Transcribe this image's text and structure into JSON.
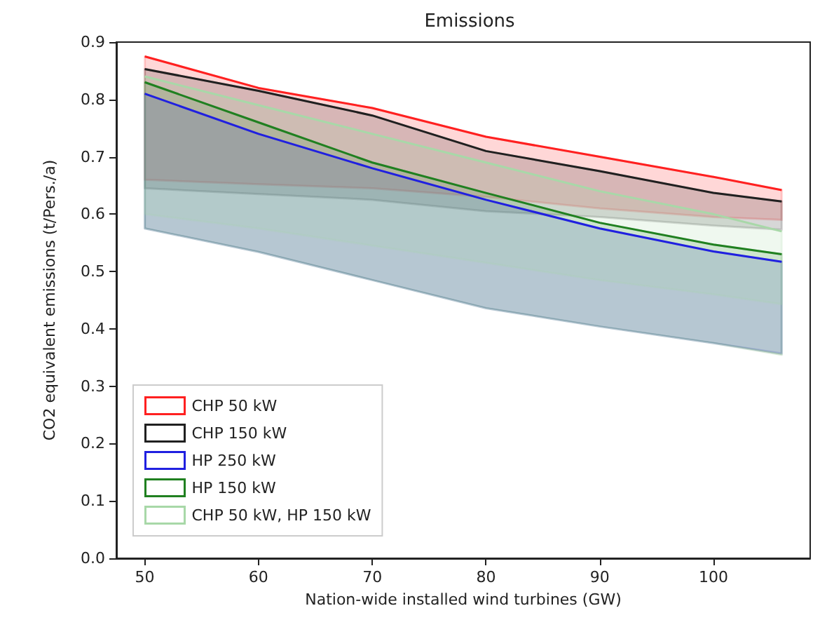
{
  "chart_data": {
    "type": "line",
    "title": "Emissions",
    "xlabel": "Nation-wide installed wind turbines (GW)",
    "ylabel": "CO2 equivalent emissions (t/Pers./a)",
    "x": [
      50,
      60,
      70,
      80,
      90,
      100,
      106
    ],
    "xlim": [
      47.5,
      108.5
    ],
    "xticks": [
      50,
      60,
      70,
      80,
      90,
      100
    ],
    "ylim": [
      0,
      0.9
    ],
    "yticks": [
      {
        "value": 0,
        "label": "0.0"
      },
      {
        "value": 0.1,
        "label": "0.1"
      },
      {
        "value": 0.2,
        "label": "0.2"
      },
      {
        "value": 0.3,
        "label": "0.3"
      },
      {
        "value": 0.4,
        "label": "0.4"
      },
      {
        "value": 0.5,
        "label": "0.5"
      },
      {
        "value": 0.6,
        "label": "0.6"
      },
      {
        "value": 0.7,
        "label": "0.7"
      },
      {
        "value": 0.8,
        "label": "0.8"
      },
      {
        "value": 0.9,
        "label": "0.9"
      }
    ],
    "grid": false,
    "legend": "bottom left",
    "marker": "none",
    "series": [
      {
        "name": "CHP 50 kW",
        "color": "#ff2020",
        "values": [
          0.875,
          0.82,
          0.785,
          0.735,
          0.7,
          0.665,
          0.642
        ],
        "upper": [
          0.875,
          0.82,
          0.785,
          0.735,
          0.7,
          0.665,
          0.642
        ],
        "lower": [
          0.66,
          0.652,
          0.645,
          0.63,
          0.61,
          0.595,
          0.59
        ]
      },
      {
        "name": "CHP 150 kW",
        "color": "#202020",
        "values": [
          0.853,
          0.815,
          0.772,
          0.71,
          0.675,
          0.637,
          0.622
        ],
        "upper": [
          0.853,
          0.815,
          0.772,
          0.71,
          0.675,
          0.637,
          0.622
        ],
        "lower": [
          0.645,
          0.635,
          0.625,
          0.605,
          0.595,
          0.58,
          0.573
        ]
      },
      {
        "name": "HP 250 kW",
        "color": "#2020e0",
        "values": [
          0.81,
          0.74,
          0.68,
          0.625,
          0.575,
          0.535,
          0.517
        ],
        "upper": [
          0.81,
          0.74,
          0.68,
          0.625,
          0.575,
          0.535,
          0.517
        ],
        "lower": [
          0.575,
          0.534,
          0.485,
          0.436,
          0.404,
          0.375,
          0.357
        ]
      },
      {
        "name": "HP 150 kW",
        "color": "#208020",
        "values": [
          0.83,
          0.76,
          0.69,
          0.637,
          0.585,
          0.547,
          0.53
        ],
        "upper": [
          0.83,
          0.76,
          0.69,
          0.637,
          0.585,
          0.547,
          0.53
        ],
        "lower": [
          0.575,
          0.534,
          0.485,
          0.436,
          0.404,
          0.375,
          0.355
        ]
      },
      {
        "name": "CHP 50 kW, HP 150 kW",
        "color": "#a8d8a8",
        "values": [
          0.84,
          0.79,
          0.74,
          0.69,
          0.64,
          0.6,
          0.57
        ],
        "upper": [
          0.84,
          0.79,
          0.74,
          0.69,
          0.64,
          0.6,
          0.57
        ],
        "lower": [
          0.6,
          0.575,
          0.545,
          0.515,
          0.485,
          0.46,
          0.443
        ]
      }
    ]
  }
}
